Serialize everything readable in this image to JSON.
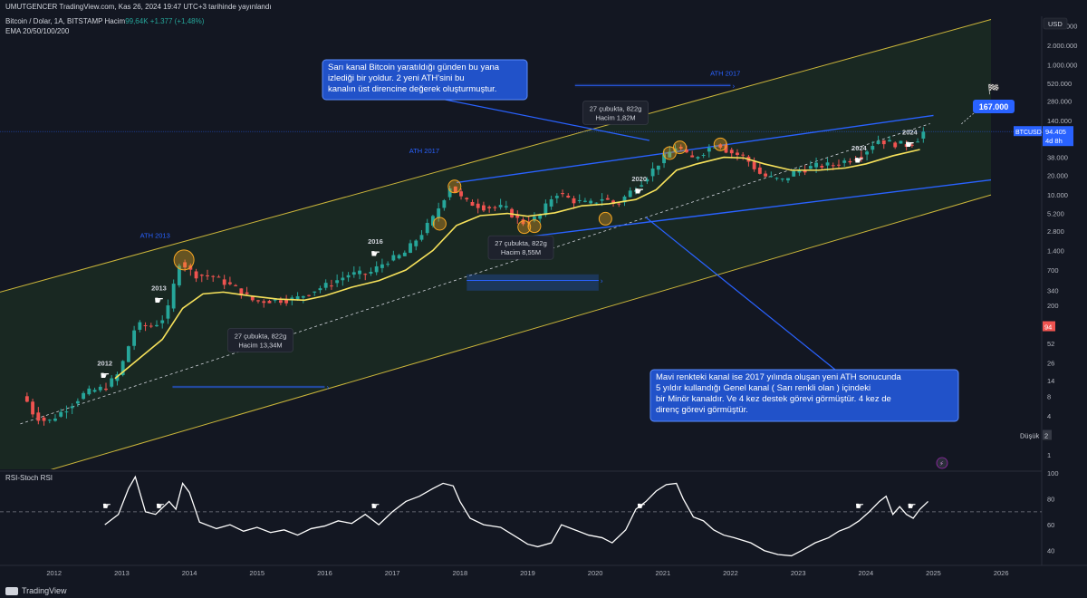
{
  "header": {
    "publish_line": "UMUTGENCER TradingView.com, Kas 26, 2024 19:47 UTC+3 tarihinde yayınlandı",
    "symbol_line": "Bitcoin / Dolar, 1A, BITSTAMP  Hacim",
    "volume_value": "99,64K  +1.377 (+1,48%)",
    "indicator_line": "EMA 20/50/100/200",
    "currency": "USD"
  },
  "footer": {
    "brand": "TradingView"
  },
  "chart_data": {
    "type": "candlestick",
    "title": "Bitcoin / Dolar, 1A, BITSTAMP",
    "scale": "log",
    "ylim": [
      0.6,
      5600000
    ],
    "xlim": [
      2011.2,
      2026.6
    ],
    "y_ticks": [
      1,
      2,
      4,
      8,
      14,
      26,
      52,
      94,
      200,
      340,
      700,
      1400,
      2800,
      5200,
      10000,
      20000,
      38000,
      72000,
      140000,
      280000,
      520000,
      1000000,
      2000000,
      4000000
    ],
    "y_tick_labels": [
      "1",
      "2",
      "4",
      "8",
      "14",
      "26",
      "52",
      "94",
      "200",
      "340",
      "700",
      "1.400",
      "2.800",
      "5.200",
      "10.000",
      "20.000",
      "38.000",
      "72.000",
      "140.000",
      "280.000",
      "520.000",
      "1.000.000",
      "2.000.000",
      "4.000.000"
    ],
    "x_ticks": [
      2012,
      2013,
      2014,
      2015,
      2016,
      2017,
      2018,
      2019,
      2020,
      2021,
      2022,
      2023,
      2024,
      2025,
      2026
    ],
    "x_tick_labels": [
      "2012",
      "2013",
      "2014",
      "2015",
      "2016",
      "2017",
      "2018",
      "2019",
      "2020",
      "2021",
      "2022",
      "2023",
      "2024",
      "2025",
      "2026"
    ],
    "price_path": [
      [
        2011.6,
        8
      ],
      [
        2011.75,
        4
      ],
      [
        2011.95,
        3.2
      ],
      [
        2012.2,
        5
      ],
      [
        2012.5,
        9
      ],
      [
        2012.8,
        11
      ],
      [
        2013.0,
        18
      ],
      [
        2013.25,
        100
      ],
      [
        2013.5,
        95
      ],
      [
        2013.7,
        140
      ],
      [
        2013.9,
        1000
      ],
      [
        2014.1,
        600
      ],
      [
        2014.4,
        550
      ],
      [
        2014.7,
        380
      ],
      [
        2015.0,
        230
      ],
      [
        2015.3,
        240
      ],
      [
        2015.6,
        250
      ],
      [
        2015.85,
        330
      ],
      [
        2016.1,
        420
      ],
      [
        2016.4,
        600
      ],
      [
        2016.7,
        620
      ],
      [
        2016.95,
        960
      ],
      [
        2017.2,
        1200
      ],
      [
        2017.45,
        2400
      ],
      [
        2017.65,
        4500
      ],
      [
        2017.9,
        14000
      ],
      [
        2018.1,
        8000
      ],
      [
        2018.4,
        6500
      ],
      [
        2018.7,
        6400
      ],
      [
        2018.95,
        3700
      ],
      [
        2019.2,
        4500
      ],
      [
        2019.45,
        11000
      ],
      [
        2019.7,
        8300
      ],
      [
        2019.95,
        7200
      ],
      [
        2020.15,
        9000
      ],
      [
        2020.35,
        7000
      ],
      [
        2020.55,
        11000
      ],
      [
        2020.8,
        19000
      ],
      [
        2021.0,
        33000
      ],
      [
        2021.25,
        58000
      ],
      [
        2021.45,
        35000
      ],
      [
        2021.65,
        47000
      ],
      [
        2021.85,
        64000
      ],
      [
        2022.0,
        47000
      ],
      [
        2022.25,
        38000
      ],
      [
        2022.5,
        20000
      ],
      [
        2022.8,
        16500
      ],
      [
        2023.0,
        23000
      ],
      [
        2023.3,
        28000
      ],
      [
        2023.55,
        29000
      ],
      [
        2023.8,
        35000
      ],
      [
        2024.0,
        43000
      ],
      [
        2024.2,
        70000
      ],
      [
        2024.45,
        62000
      ],
      [
        2024.65,
        59000
      ],
      [
        2024.8,
        72000
      ],
      [
        2024.9,
        94405
      ]
    ],
    "ema_path": [
      [
        2012.9,
        15
      ],
      [
        2013.25,
        30
      ],
      [
        2013.6,
        60
      ],
      [
        2013.9,
        180
      ],
      [
        2014.2,
        300
      ],
      [
        2014.5,
        320
      ],
      [
        2014.9,
        280
      ],
      [
        2015.3,
        250
      ],
      [
        2015.7,
        240
      ],
      [
        2016.0,
        280
      ],
      [
        2016.4,
        380
      ],
      [
        2016.8,
        480
      ],
      [
        2017.2,
        700
      ],
      [
        2017.6,
        1400
      ],
      [
        2017.95,
        3400
      ],
      [
        2018.3,
        4800
      ],
      [
        2018.7,
        5200
      ],
      [
        2019.0,
        4700
      ],
      [
        2019.4,
        5300
      ],
      [
        2019.8,
        6800
      ],
      [
        2020.2,
        7300
      ],
      [
        2020.6,
        8500
      ],
      [
        2020.9,
        12000
      ],
      [
        2021.2,
        24000
      ],
      [
        2021.5,
        30000
      ],
      [
        2021.9,
        38000
      ],
      [
        2022.2,
        37000
      ],
      [
        2022.5,
        30000
      ],
      [
        2022.9,
        24000
      ],
      [
        2023.3,
        24000
      ],
      [
        2023.7,
        26000
      ],
      [
        2024.0,
        30000
      ],
      [
        2024.4,
        40000
      ],
      [
        2024.8,
        50000
      ]
    ],
    "dashed_median": [
      [
        2011.5,
        3
      ],
      [
        2024.95,
        125000
      ]
    ],
    "yellow_channel": {
      "upper": [
        [
          2011.2,
          320
        ],
        [
          2025.85,
          5000000
        ]
      ],
      "lower": [
        [
          2011.2,
          0.35
        ],
        [
          2025.85,
          10000
        ]
      ]
    },
    "blue_channel": {
      "upper": [
        [
          2017.95,
          15500
        ],
        [
          2025.0,
          167000
        ]
      ],
      "lower": [
        [
          2018.9,
          2200
        ],
        [
          2025.85,
          17000
        ]
      ]
    },
    "ath_line_value": 94405,
    "touch_points": [
      [
        2013.92,
        1000
      ],
      [
        2017.7,
        3600
      ],
      [
        2017.92,
        13500
      ],
      [
        2018.95,
        3200
      ],
      [
        2019.1,
        3300
      ],
      [
        2020.15,
        4300
      ],
      [
        2021.1,
        44000
      ],
      [
        2021.25,
        54000
      ],
      [
        2021.85,
        60000
      ]
    ],
    "labels": {
      "ath_2013": "ATH 2013",
      "ath_2017": "ATH 2017",
      "ath_2017_b": "ATH 2017",
      "year_2012": "2012",
      "year_2013": "2013",
      "year_2016": "2016",
      "year_2020": "2020",
      "year_2024": "2024",
      "year_2024_b": "2024",
      "flag_price": "167.000",
      "high_label": "Yüksek",
      "high_value": "99.800",
      "last_symbol": "BTCUSD",
      "last_value": "94.405",
      "last_time": "4d 8h",
      "low_label": "Düşük",
      "low_value": "2",
      "rsi_marker": "94"
    },
    "range_boxes": [
      {
        "line1": "27 çubukta, 822g",
        "line2": "Hacim 13,34M"
      },
      {
        "line1": "27 çubukta, 822g",
        "line2": "Hacim 8,55M"
      },
      {
        "line1": "27 çubukta, 822g",
        "line2": "Hacim 1,82M"
      }
    ],
    "callouts": [
      {
        "text": "Sarı kanal Bitcoin yaratıldığı günden bu yana izlediği bir yoldur. 2 yeni ATH'sini bu kanalın üst direncine değerek oluşturmuştur."
      },
      {
        "text": "Mavi renkteki kanal ise 2017 yılında oluşan yeni ATH sonucunda 5 yıldır kullandığı Genel kanal ( Sarı renkli olan ) içindeki bir Minör kanaldır. Ve 4 kez destek görevi görmüştür. 4 kez de direnç görevi görmüştür."
      }
    ],
    "rsi": {
      "title": "RSI-Stoch RSI",
      "ylim": [
        30,
        100
      ],
      "y_ticks": [
        40,
        60,
        80,
        100
      ],
      "dashed_level": 70,
      "points": [
        [
          2012.75,
          60
        ],
        [
          2012.95,
          68
        ],
        [
          2013.1,
          88
        ],
        [
          2013.2,
          97
        ],
        [
          2013.35,
          70
        ],
        [
          2013.5,
          68
        ],
        [
          2013.7,
          78
        ],
        [
          2013.8,
          72
        ],
        [
          2013.9,
          92
        ],
        [
          2014.0,
          85
        ],
        [
          2014.15,
          62
        ],
        [
          2014.4,
          57
        ],
        [
          2014.6,
          60
        ],
        [
          2014.8,
          55
        ],
        [
          2015.0,
          58
        ],
        [
          2015.2,
          54
        ],
        [
          2015.4,
          56
        ],
        [
          2015.6,
          52
        ],
        [
          2015.8,
          57
        ],
        [
          2016.0,
          59
        ],
        [
          2016.2,
          63
        ],
        [
          2016.4,
          61
        ],
        [
          2016.6,
          68
        ],
        [
          2016.8,
          60
        ],
        [
          2017.0,
          70
        ],
        [
          2017.2,
          78
        ],
        [
          2017.4,
          82
        ],
        [
          2017.6,
          88
        ],
        [
          2017.75,
          92
        ],
        [
          2017.9,
          90
        ],
        [
          2018.0,
          78
        ],
        [
          2018.15,
          65
        ],
        [
          2018.35,
          60
        ],
        [
          2018.6,
          58
        ],
        [
          2018.85,
          50
        ],
        [
          2019.0,
          45
        ],
        [
          2019.15,
          43
        ],
        [
          2019.35,
          46
        ],
        [
          2019.5,
          60
        ],
        [
          2019.7,
          56
        ],
        [
          2019.9,
          52
        ],
        [
          2020.1,
          50
        ],
        [
          2020.25,
          46
        ],
        [
          2020.45,
          56
        ],
        [
          2020.6,
          72
        ],
        [
          2020.75,
          78
        ],
        [
          2020.9,
          86
        ],
        [
          2021.05,
          91
        ],
        [
          2021.2,
          92
        ],
        [
          2021.3,
          80
        ],
        [
          2021.45,
          66
        ],
        [
          2021.6,
          63
        ],
        [
          2021.75,
          56
        ],
        [
          2021.9,
          52
        ],
        [
          2022.05,
          50
        ],
        [
          2022.3,
          46
        ],
        [
          2022.5,
          40
        ],
        [
          2022.7,
          37
        ],
        [
          2022.9,
          36
        ],
        [
          2023.05,
          40
        ],
        [
          2023.25,
          46
        ],
        [
          2023.45,
          50
        ],
        [
          2023.6,
          55
        ],
        [
          2023.75,
          58
        ],
        [
          2023.9,
          63
        ],
        [
          2024.05,
          70
        ],
        [
          2024.2,
          78
        ],
        [
          2024.3,
          82
        ],
        [
          2024.4,
          68
        ],
        [
          2024.5,
          74
        ],
        [
          2024.6,
          68
        ],
        [
          2024.7,
          65
        ],
        [
          2024.8,
          72
        ],
        [
          2024.92,
          78
        ]
      ],
      "hand_markers": [
        2012.78,
        2013.57,
        2016.75,
        2020.68,
        2023.91,
        2024.68
      ]
    }
  }
}
